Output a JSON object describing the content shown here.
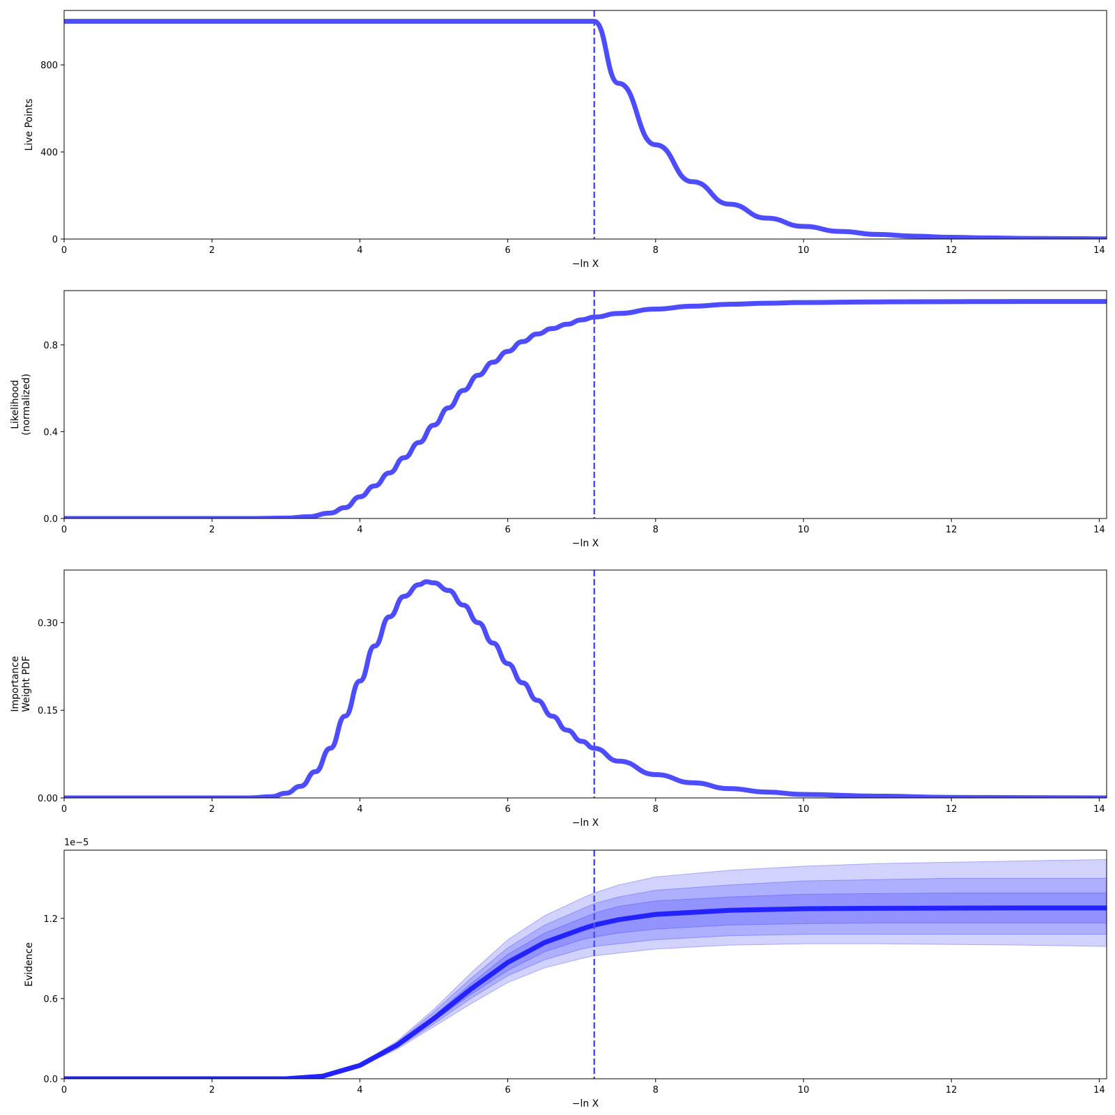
{
  "colors": {
    "line": "#4d4dff",
    "evidence_line": "#2323ff",
    "band": "#3333ff",
    "axis": "#000000"
  },
  "chart_data": [
    {
      "type": "line",
      "ylabel": "Live Points",
      "xlabel": "−ln X",
      "xlim": [
        0,
        14.1
      ],
      "ylim": [
        0,
        1050
      ],
      "xticks": [
        "0",
        "2",
        "4",
        "6",
        "8",
        "10",
        "12",
        "14"
      ],
      "yticks": [
        "0",
        "400",
        "800"
      ],
      "vline_x": 7.17,
      "series": [
        {
          "x": [
            0,
            1,
            2,
            3,
            4,
            5,
            6,
            7,
            7.17,
            7.5,
            8,
            8.5,
            9,
            9.5,
            10,
            10.5,
            11,
            11.5,
            12,
            12.5,
            13,
            13.5,
            14,
            14.1
          ],
          "values": [
            1000,
            1000,
            1000,
            1000,
            1000,
            1000,
            1000,
            1000,
            1000,
            715,
            433,
            263,
            160,
            96,
            58,
            35,
            21,
            13,
            8,
            5,
            3,
            2,
            1,
            1
          ]
        }
      ]
    },
    {
      "type": "line",
      "ylabel": "Likelihood\n(normalized)",
      "xlabel": "−ln X",
      "xlim": [
        0,
        14.1
      ],
      "ylim": [
        0,
        1.05
      ],
      "xticks": [
        "0",
        "2",
        "4",
        "6",
        "8",
        "10",
        "12",
        "14"
      ],
      "yticks": [
        "0.0",
        "0.4",
        "0.8"
      ],
      "vline_x": 7.17,
      "series": [
        {
          "x": [
            0,
            2.5,
            3.0,
            3.3,
            3.6,
            3.8,
            4.0,
            4.2,
            4.4,
            4.6,
            4.8,
            5.0,
            5.2,
            5.4,
            5.6,
            5.8,
            6.0,
            6.2,
            6.4,
            6.6,
            6.8,
            7.0,
            7.17,
            7.5,
            8.0,
            8.5,
            9.0,
            9.5,
            10,
            11,
            12,
            13,
            14.1
          ],
          "values": [
            0,
            0,
            0.002,
            0.008,
            0.025,
            0.05,
            0.1,
            0.15,
            0.21,
            0.28,
            0.35,
            0.43,
            0.51,
            0.59,
            0.66,
            0.72,
            0.77,
            0.815,
            0.85,
            0.875,
            0.895,
            0.915,
            0.928,
            0.945,
            0.965,
            0.978,
            0.987,
            0.992,
            0.995,
            0.998,
            0.999,
            1.0,
            1.0
          ]
        }
      ]
    },
    {
      "type": "line",
      "ylabel": "Importance\nWeight PDF",
      "xlabel": "−ln X",
      "xlim": [
        0,
        14.1
      ],
      "ylim": [
        0,
        0.39
      ],
      "xticks": [
        "0",
        "2",
        "4",
        "6",
        "8",
        "10",
        "12",
        "14"
      ],
      "yticks": [
        "0.00",
        "0.15",
        "0.30"
      ],
      "vline_x": 7.17,
      "series": [
        {
          "x": [
            0,
            2.5,
            2.8,
            3.0,
            3.2,
            3.4,
            3.6,
            3.8,
            4.0,
            4.2,
            4.4,
            4.6,
            4.8,
            4.9,
            5.0,
            5.2,
            5.4,
            5.6,
            5.8,
            6.0,
            6.2,
            6.4,
            6.6,
            6.8,
            7.0,
            7.17,
            7.5,
            8.0,
            8.5,
            9.0,
            9.5,
            10,
            11,
            12,
            13,
            14.1
          ],
          "values": [
            0,
            0,
            0.002,
            0.008,
            0.02,
            0.045,
            0.085,
            0.14,
            0.2,
            0.26,
            0.31,
            0.345,
            0.365,
            0.37,
            0.368,
            0.355,
            0.33,
            0.3,
            0.265,
            0.23,
            0.197,
            0.167,
            0.14,
            0.116,
            0.097,
            0.085,
            0.063,
            0.04,
            0.026,
            0.016,
            0.01,
            0.006,
            0.003,
            0.001,
            0.0005,
            0
          ]
        }
      ]
    },
    {
      "type": "area",
      "ylabel": "Evidence",
      "xlabel": "−ln X",
      "offset_text": "1e−5",
      "xlim": [
        0,
        14.1
      ],
      "ylim": [
        0,
        1.71
      ],
      "xticks": [
        "0",
        "2",
        "4",
        "6",
        "8",
        "10",
        "12",
        "14"
      ],
      "yticks": [
        "0.0",
        "0.6",
        "1.2"
      ],
      "vline_x": 7.17,
      "x": [
        0,
        3.0,
        3.5,
        4.0,
        4.5,
        5.0,
        5.5,
        6.0,
        6.5,
        7.0,
        7.17,
        7.5,
        8.0,
        9.0,
        10,
        11,
        12,
        13,
        14.1
      ],
      "series": [
        {
          "name": "median",
          "values": [
            0,
            0.0,
            0.02,
            0.1,
            0.25,
            0.45,
            0.67,
            0.87,
            1.02,
            1.12,
            1.15,
            1.19,
            1.23,
            1.26,
            1.272,
            1.275,
            1.277,
            1.278,
            1.278
          ]
        },
        {
          "name": "1-sigma lower",
          "values": [
            0,
            0.0,
            0.02,
            0.1,
            0.24,
            0.43,
            0.63,
            0.81,
            0.95,
            1.04,
            1.06,
            1.09,
            1.12,
            1.15,
            1.16,
            1.165,
            1.165,
            1.165,
            1.165
          ]
        },
        {
          "name": "1-sigma upper",
          "values": [
            0,
            0.0,
            0.02,
            0.1,
            0.26,
            0.47,
            0.71,
            0.93,
            1.09,
            1.2,
            1.24,
            1.29,
            1.33,
            1.36,
            1.38,
            1.385,
            1.39,
            1.39,
            1.39
          ]
        },
        {
          "name": "2-sigma lower",
          "values": [
            0,
            0.0,
            0.02,
            0.1,
            0.23,
            0.41,
            0.6,
            0.77,
            0.89,
            0.97,
            0.99,
            1.01,
            1.04,
            1.07,
            1.08,
            1.08,
            1.08,
            1.08,
            1.08
          ]
        },
        {
          "name": "2-sigma upper",
          "values": [
            0,
            0.0,
            0.02,
            0.11,
            0.27,
            0.5,
            0.75,
            0.98,
            1.15,
            1.27,
            1.31,
            1.36,
            1.41,
            1.45,
            1.48,
            1.49,
            1.5,
            1.5,
            1.5
          ]
        },
        {
          "name": "3-sigma lower",
          "values": [
            0,
            0.0,
            0.02,
            0.09,
            0.22,
            0.39,
            0.56,
            0.72,
            0.83,
            0.9,
            0.92,
            0.94,
            0.97,
            1.0,
            1.01,
            1.01,
            1.005,
            1.0,
            0.99
          ]
        },
        {
          "name": "3-sigma upper",
          "values": [
            0,
            0.0,
            0.02,
            0.11,
            0.28,
            0.52,
            0.79,
            1.04,
            1.22,
            1.35,
            1.39,
            1.45,
            1.51,
            1.56,
            1.59,
            1.61,
            1.62,
            1.63,
            1.64
          ]
        }
      ]
    }
  ]
}
